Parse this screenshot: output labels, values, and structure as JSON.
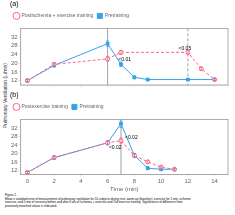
{
  "chart_data": [
    {
      "type": "line",
      "title": "(a)",
      "series": [
        {
          "name": "Pretraining",
          "x": [
            0,
            2,
            6,
            7,
            8,
            9,
            12,
            14
          ],
          "values": [
            12,
            19,
            29,
            19.5,
            13.5,
            12.5,
            12.5,
            12.5
          ],
          "errors": [
            0.5,
            0.7,
            1.2,
            1.0,
            0.6,
            0.5,
            0.4,
            0.4
          ],
          "marker": "square",
          "line_style": "solid"
        },
        {
          "name": "Postischemia + exercise training",
          "x": [
            0,
            2,
            6,
            7,
            12,
            13,
            14
          ],
          "values": [
            12,
            19.5,
            22,
            25,
            25,
            17.5,
            12.5
          ],
          "errors": [
            0.5,
            0.7,
            1.0,
            0.9,
            0.8,
            0.6,
            0.4
          ],
          "marker": "circle",
          "line_style": "dashed"
        }
      ],
      "vlines": [
        {
          "x": 6,
          "line_style": "solid"
        },
        {
          "x": 12,
          "line_style": "dashed"
        }
      ],
      "annotations": [
        {
          "x": 6.8,
          "y": 21.5,
          "text": "<0.01"
        },
        {
          "x": 11.3,
          "y": 26.8,
          "text": "<0.05"
        }
      ],
      "xlim": [
        -0.5,
        15
      ],
      "xticks": [
        0,
        2,
        4,
        6,
        8,
        10,
        12,
        14
      ],
      "ylim": [
        10,
        36
      ],
      "yticks": [
        12,
        16,
        20,
        24,
        28,
        32
      ],
      "grid": false,
      "legend": "upper left",
      "tick_labels": "y"
    },
    {
      "type": "line",
      "title": "(b)",
      "xlabel": "Time (min)",
      "series": [
        {
          "name": "Pretraining",
          "x": [
            0,
            2,
            6,
            7,
            8,
            9,
            10,
            11
          ],
          "values": [
            11,
            18,
            25,
            34,
            19,
            13,
            12.5,
            12.5
          ],
          "errors": [
            0.5,
            0.8,
            1.0,
            1.8,
            1.0,
            0.7,
            0.5,
            0.5
          ],
          "marker": "square",
          "line_style": "solid"
        },
        {
          "name": "Postexercise training",
          "x": [
            0,
            2,
            6,
            7,
            8,
            9,
            10,
            11
          ],
          "values": [
            11,
            18,
            25,
            26,
            19,
            16,
            13.5,
            12.5
          ],
          "errors": [
            0.5,
            0.7,
            0.9,
            1.2,
            0.8,
            0.7,
            0.5,
            0.5
          ],
          "marker": "circle",
          "line_style": "dashed"
        }
      ],
      "vlines": [
        {
          "x": 7,
          "line_style": "solid"
        }
      ],
      "annotations": [
        {
          "x": 6.1,
          "y": 22.5,
          "text": "<0.02"
        },
        {
          "x": 7.3,
          "y": 27.5,
          "text": "<0.02"
        }
      ],
      "xlim": [
        -0.5,
        15
      ],
      "xticks": [
        0,
        2,
        4,
        6,
        8,
        10,
        12,
        14
      ],
      "ylim": [
        10,
        36
      ],
      "yticks": [
        12,
        16,
        20,
        24,
        28,
        32
      ],
      "grid": false,
      "legend": "upper left"
    }
  ],
  "ylabel": "Pulmonary Ventilation (L/min)",
  "caption": "Figure 2.\nMean ± standard error of measurement of pulmonary ventilation for 10 subjects during rest, warm-up (baseline), exercise for 5 min, ischemic\nexercise, and 5 min of recovery before and after 6 wk of Ischemia + exercise and Oid exercise training. Significance of difference from\npreviously matched values is indicated."
}
